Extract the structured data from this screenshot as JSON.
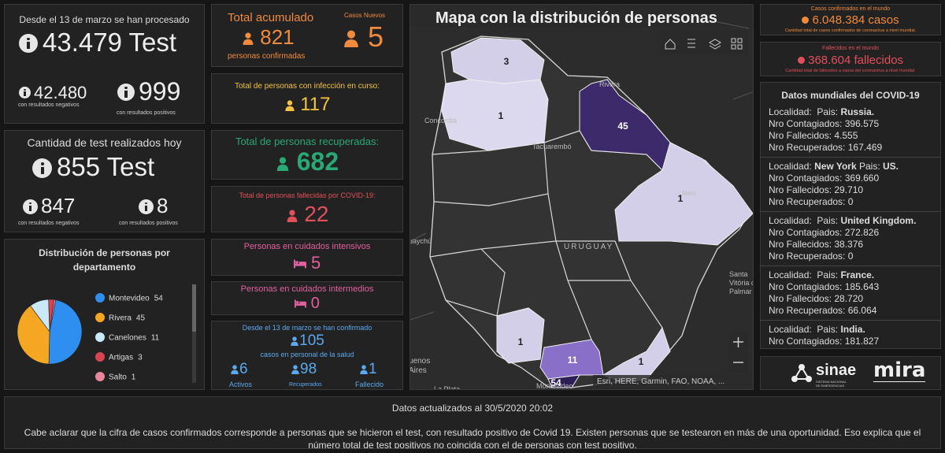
{
  "tests_processed": {
    "heading": "Desde el 13 de marzo se han procesado",
    "total": "43.479 Test",
    "negative": "42.480",
    "negative_label": "con resultados negativos",
    "positive": "999",
    "positive_label": "con resultados positivos"
  },
  "tests_today": {
    "heading": "Cantidad de test realizados hoy",
    "total": "855 Test",
    "negative": "847",
    "negative_label": "con resultados negativos",
    "positive": "8",
    "positive_label": "con resultados positivos"
  },
  "distribution": {
    "type": "pie",
    "title": "Distribución de personas por departamento",
    "categories": [
      "Montevideo",
      "Rivera",
      "Canelones",
      "Artigas",
      "Salto"
    ],
    "values": [
      54,
      45,
      11,
      3,
      1
    ],
    "colors": [
      "#2e8ff0",
      "#f5a623",
      "#c9e8f8",
      "#d94452",
      "#e8889a"
    ]
  },
  "cumulative": {
    "heading": "Total acumulado",
    "value": "821",
    "caption": "personas confirmadas",
    "new_heading": "Casos Nuevos",
    "new_value": "5"
  },
  "active": {
    "heading": "Total de personas con infección en curso:",
    "value": "117"
  },
  "recovered": {
    "heading": "Total de personas recuperadas:",
    "value": "682"
  },
  "deceased": {
    "heading": "Total de personas fallecidas por COVID-19:",
    "value": "22"
  },
  "intensive": {
    "heading": "Personas en cuidados intensivos",
    "value": "5"
  },
  "intermediate": {
    "heading": "Personas en cuidados intermedios",
    "value": "0"
  },
  "health_staff": {
    "heading": "Desde el 13 de marzo se han confirmado",
    "value": "105",
    "caption": "casos en personal de la salud",
    "active": "6",
    "active_label": "Activos",
    "recovered": "98",
    "recovered_label": "Recuperados",
    "deceased": "1",
    "deceased_label": "Fallecido"
  },
  "map": {
    "title": "Mapa con la distribución de personas",
    "counts": [
      3,
      1,
      45,
      1,
      1,
      11,
      54,
      1
    ],
    "places": [
      "Rivera",
      "Concordia",
      "Tacuarembó",
      "Melo",
      "URUGUAY",
      "Santa",
      "Vitória do",
      "Palmar",
      "uenos",
      "Aires",
      "La Plata",
      "Montevideo",
      "uaychú"
    ],
    "attribution": "Esri, HERE, Garmin, FAO, NOAA, ..."
  },
  "world_cases": {
    "heading": "Casos confirmados en el mundo",
    "value": "6.048.384 casos",
    "caption": "Cantidad total de casos confirmados de coronavirus a nivel mundial."
  },
  "world_deaths": {
    "heading": "Fallecidos en el mundo",
    "value": "368.604 fallecidos",
    "caption": "Cantidad total de fallecidos a causa del coronavirus a nivel mundial."
  },
  "world_list": {
    "title": "Datos mundiales del COVID-19",
    "labels": {
      "localidad": "Localidad:",
      "pais": "Pais:",
      "contagiados": "Nro Contagiados:",
      "fallecidos": "Nro Fallecidos:",
      "recuperados": "Nro Recuperados:"
    },
    "items": [
      {
        "pais": "Russia.",
        "contagiados": "396.575",
        "fallecidos": "4.555",
        "recuperados": "167.469"
      },
      {
        "localidad": "New York",
        "pais": "US.",
        "contagiados": "369.660",
        "fallecidos": "29.710",
        "recuperados": "0"
      },
      {
        "pais": "United Kingdom.",
        "contagiados": "272.826",
        "fallecidos": "38.376",
        "recuperados": "0"
      },
      {
        "pais": "France.",
        "contagiados": "185.643",
        "fallecidos": "28.720",
        "recuperados": "66.064"
      },
      {
        "pais": "India.",
        "contagiados": "181.827"
      }
    ]
  },
  "logos": {
    "sinae": "sinae",
    "sinae_caption": "SISTEMA NACIONAL DE EMERGENCIAS",
    "mira": "mira"
  },
  "footer": {
    "updated": "Datos actualizados al 30/5/2020 20:02",
    "note": "Cabe aclarar que la cifra de casos confirmados corresponde a personas que se hicieron el test, con resultado positivo de Covid 19. Existen personas que se testearon en más de una oportunidad. Eso explica que el número total de test positivos no coincida con el de personas con test positivo."
  }
}
